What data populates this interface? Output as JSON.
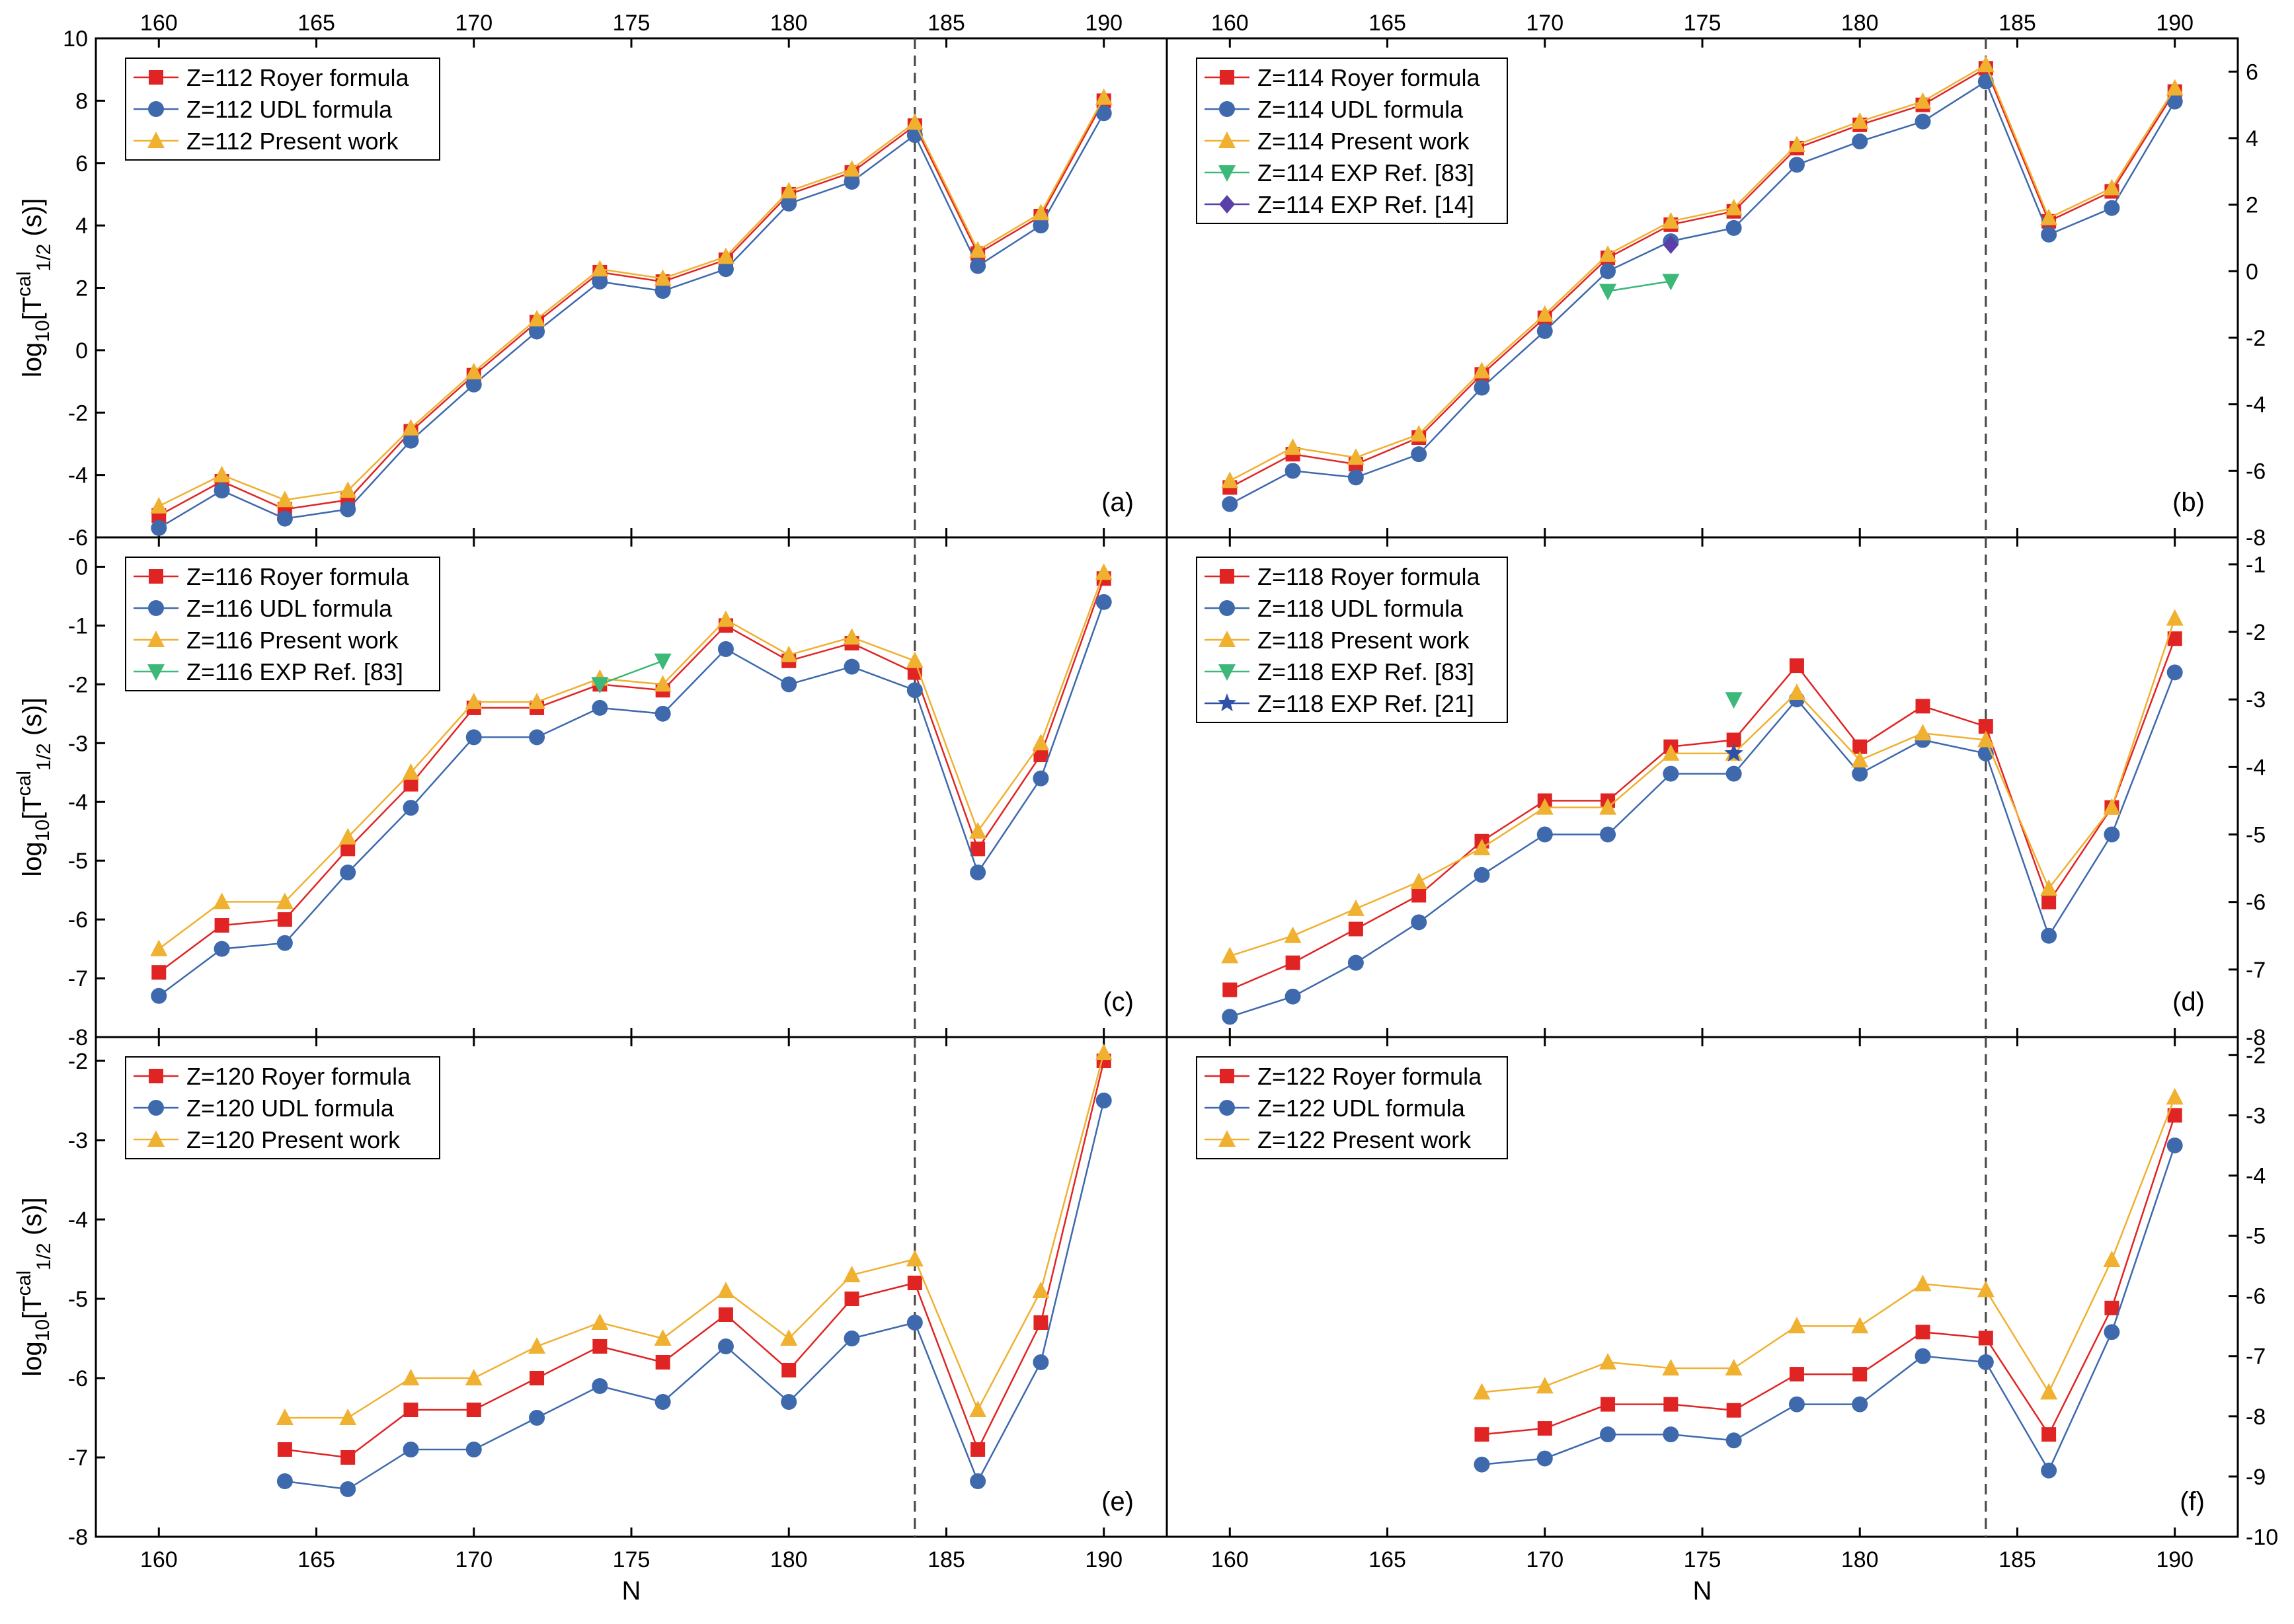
{
  "chart_data": [
    {
      "type": "line",
      "panel_label": "(a)",
      "ylim": [
        -6,
        10
      ],
      "yticks": [
        -6,
        -4,
        -2,
        0,
        2,
        4,
        6,
        8,
        10
      ],
      "y_axis_side": "left",
      "legend_position": "top-left",
      "series": [
        {
          "name": "Z=112 Royer formula",
          "color": "#e02424",
          "marker": "square",
          "x": [
            160,
            162,
            164,
            166,
            168,
            170,
            172,
            174,
            176,
            178,
            180,
            182,
            184,
            186,
            188,
            190
          ],
          "y": [
            -5.3,
            -4.2,
            -5.1,
            -4.8,
            -2.6,
            -0.8,
            0.9,
            2.5,
            2.2,
            2.9,
            5.0,
            5.7,
            7.2,
            3.1,
            4.3,
            8.0
          ]
        },
        {
          "name": "Z=112 UDL formula",
          "color": "#3e69ad",
          "marker": "circle",
          "x": [
            160,
            162,
            164,
            166,
            168,
            170,
            172,
            174,
            176,
            178,
            180,
            182,
            184,
            186,
            188,
            190
          ],
          "y": [
            -5.7,
            -4.5,
            -5.4,
            -5.1,
            -2.9,
            -1.1,
            0.6,
            2.2,
            1.9,
            2.6,
            4.7,
            5.4,
            6.9,
            2.7,
            4.0,
            7.6
          ]
        },
        {
          "name": "Z=112 Present work",
          "color": "#f0b030",
          "marker": "triangle-up",
          "x": [
            160,
            162,
            164,
            166,
            168,
            170,
            172,
            174,
            176,
            178,
            180,
            182,
            184,
            186,
            188,
            190
          ],
          "y": [
            -5.0,
            -4.0,
            -4.8,
            -4.5,
            -2.5,
            -0.7,
            1.0,
            2.6,
            2.3,
            3.0,
            5.1,
            5.8,
            7.3,
            3.2,
            4.4,
            8.1
          ]
        }
      ]
    },
    {
      "type": "line",
      "panel_label": "(b)",
      "ylim": [
        -8,
        7
      ],
      "yticks": [
        -8,
        -6,
        -4,
        -2,
        0,
        2,
        4,
        6
      ],
      "y_axis_side": "right",
      "legend_position": "top-left",
      "series": [
        {
          "name": "Z=114 Royer formula",
          "color": "#e02424",
          "marker": "square",
          "x": [
            160,
            162,
            164,
            166,
            168,
            170,
            172,
            174,
            176,
            178,
            180,
            182,
            184,
            186,
            188,
            190
          ],
          "y": [
            -6.5,
            -5.5,
            -5.8,
            -5.0,
            -3.1,
            -1.4,
            0.4,
            1.4,
            1.8,
            3.7,
            4.4,
            5.0,
            6.1,
            1.5,
            2.4,
            5.4
          ]
        },
        {
          "name": "Z=114 UDL formula",
          "color": "#3e69ad",
          "marker": "circle",
          "x": [
            160,
            162,
            164,
            166,
            168,
            170,
            172,
            174,
            176,
            178,
            180,
            182,
            184,
            186,
            188,
            190
          ],
          "y": [
            -7.0,
            -6.0,
            -6.2,
            -5.5,
            -3.5,
            -1.8,
            0.0,
            0.9,
            1.3,
            3.2,
            3.9,
            4.5,
            5.7,
            1.1,
            1.9,
            5.1
          ]
        },
        {
          "name": "Z=114 Present work",
          "color": "#f0b030",
          "marker": "triangle-up",
          "x": [
            160,
            162,
            164,
            166,
            168,
            170,
            172,
            174,
            176,
            178,
            180,
            182,
            184,
            186,
            188,
            190
          ],
          "y": [
            -6.3,
            -5.3,
            -5.6,
            -4.9,
            -3.0,
            -1.3,
            0.5,
            1.5,
            1.9,
            3.8,
            4.5,
            5.1,
            6.2,
            1.6,
            2.5,
            5.5
          ]
        },
        {
          "name": "Z=114 EXP Ref. [83]",
          "color": "#3cb878",
          "marker": "triangle-down",
          "x": [
            172,
            174
          ],
          "y": [
            -0.6,
            -0.3
          ]
        },
        {
          "name": "Z=114 EXP Ref. [14]",
          "color": "#5a3fa8",
          "marker": "diamond",
          "x": [
            174
          ],
          "y": [
            0.8
          ]
        }
      ]
    },
    {
      "type": "line",
      "panel_label": "(c)",
      "ylim": [
        -8,
        0.5
      ],
      "yticks": [
        -8,
        -7,
        -6,
        -5,
        -4,
        -3,
        -2,
        -1,
        0
      ],
      "y_axis_side": "left",
      "legend_position": "top-left",
      "series": [
        {
          "name": "Z=116 Royer formula",
          "color": "#e02424",
          "marker": "square",
          "x": [
            160,
            162,
            164,
            166,
            168,
            170,
            172,
            174,
            176,
            178,
            180,
            182,
            184,
            186,
            188,
            190
          ],
          "y": [
            -6.9,
            -6.1,
            -6.0,
            -4.8,
            -3.7,
            -2.4,
            -2.4,
            -2.0,
            -2.1,
            -1.0,
            -1.6,
            -1.3,
            -1.8,
            -4.8,
            -3.2,
            -0.2
          ]
        },
        {
          "name": "Z=116 UDL formula",
          "color": "#3e69ad",
          "marker": "circle",
          "x": [
            160,
            162,
            164,
            166,
            168,
            170,
            172,
            174,
            176,
            178,
            180,
            182,
            184,
            186,
            188,
            190
          ],
          "y": [
            -7.3,
            -6.5,
            -6.4,
            -5.2,
            -4.1,
            -2.9,
            -2.9,
            -2.4,
            -2.5,
            -1.4,
            -2.0,
            -1.7,
            -2.1,
            -5.2,
            -3.6,
            -0.6
          ]
        },
        {
          "name": "Z=116 Present work",
          "color": "#f0b030",
          "marker": "triangle-up",
          "x": [
            160,
            162,
            164,
            166,
            168,
            170,
            172,
            174,
            176,
            178,
            180,
            182,
            184,
            186,
            188,
            190
          ],
          "y": [
            -6.5,
            -5.7,
            -5.7,
            -4.6,
            -3.5,
            -2.3,
            -2.3,
            -1.9,
            -2.0,
            -0.9,
            -1.5,
            -1.2,
            -1.6,
            -4.5,
            -3.0,
            -0.1
          ]
        },
        {
          "name": "Z=116 EXP Ref. [83]",
          "color": "#3cb878",
          "marker": "triangle-down",
          "x": [
            174,
            176
          ],
          "y": [
            -2.0,
            -1.6
          ]
        }
      ]
    },
    {
      "type": "line",
      "panel_label": "(d)",
      "ylim": [
        -8,
        -0.6
      ],
      "yticks": [
        -8,
        -7,
        -6,
        -5,
        -4,
        -3,
        -2,
        -1
      ],
      "y_axis_side": "right",
      "legend_position": "top-left",
      "series": [
        {
          "name": "Z=118 Royer formula",
          "color": "#e02424",
          "marker": "square",
          "x": [
            160,
            162,
            164,
            166,
            168,
            170,
            172,
            174,
            176,
            178,
            180,
            182,
            184,
            186,
            188,
            190
          ],
          "y": [
            -7.3,
            -6.9,
            -6.4,
            -5.9,
            -5.1,
            -4.5,
            -4.5,
            -3.7,
            -3.6,
            -2.5,
            -3.7,
            -3.1,
            -3.4,
            -6.0,
            -4.6,
            -2.1
          ]
        },
        {
          "name": "Z=118 UDL formula",
          "color": "#3e69ad",
          "marker": "circle",
          "x": [
            160,
            162,
            164,
            166,
            168,
            170,
            172,
            174,
            176,
            178,
            180,
            182,
            184,
            186,
            188,
            190
          ],
          "y": [
            -7.7,
            -7.4,
            -6.9,
            -6.3,
            -5.6,
            -5.0,
            -5.0,
            -4.1,
            -4.1,
            -3.0,
            -4.1,
            -3.6,
            -3.8,
            -6.5,
            -5.0,
            -2.6
          ]
        },
        {
          "name": "Z=118 Present work",
          "color": "#f0b030",
          "marker": "triangle-up",
          "x": [
            160,
            162,
            164,
            166,
            168,
            170,
            172,
            174,
            176,
            178,
            180,
            182,
            184,
            186,
            188,
            190
          ],
          "y": [
            -6.8,
            -6.5,
            -6.1,
            -5.7,
            -5.2,
            -4.6,
            -4.6,
            -3.8,
            -3.8,
            -2.9,
            -3.9,
            -3.5,
            -3.6,
            -5.8,
            -4.6,
            -1.8
          ]
        },
        {
          "name": "Z=118 EXP Ref. [83]",
          "color": "#3cb878",
          "marker": "triangle-down",
          "x": [
            176
          ],
          "y": [
            -3.0
          ]
        },
        {
          "name": "Z=118 EXP Ref. [21]",
          "color": "#2f4fa8",
          "marker": "star",
          "x": [
            176
          ],
          "y": [
            -3.8
          ]
        }
      ]
    },
    {
      "type": "line",
      "panel_label": "(e)",
      "ylim": [
        -8,
        -1.7
      ],
      "yticks": [
        -8,
        -7,
        -6,
        -5,
        -4,
        -3,
        -2
      ],
      "y_axis_side": "left",
      "legend_position": "top-left",
      "series": [
        {
          "name": "Z=120 Royer formula",
          "color": "#e02424",
          "marker": "square",
          "x": [
            164,
            166,
            168,
            170,
            172,
            174,
            176,
            178,
            180,
            182,
            184,
            186,
            188,
            190
          ],
          "y": [
            -6.9,
            -7.0,
            -6.4,
            -6.4,
            -6.0,
            -5.6,
            -5.8,
            -5.2,
            -5.9,
            -5.0,
            -4.8,
            -6.9,
            -5.3,
            -2.0
          ]
        },
        {
          "name": "Z=120 UDL formula",
          "color": "#3e69ad",
          "marker": "circle",
          "x": [
            164,
            166,
            168,
            170,
            172,
            174,
            176,
            178,
            180,
            182,
            184,
            186,
            188,
            190
          ],
          "y": [
            -7.3,
            -7.4,
            -6.9,
            -6.9,
            -6.5,
            -6.1,
            -6.3,
            -5.6,
            -6.3,
            -5.5,
            -5.3,
            -7.3,
            -5.8,
            -2.5
          ]
        },
        {
          "name": "Z=120 Present work",
          "color": "#f0b030",
          "marker": "triangle-up",
          "x": [
            164,
            166,
            168,
            170,
            172,
            174,
            176,
            178,
            180,
            182,
            184,
            186,
            188,
            190
          ],
          "y": [
            -6.5,
            -6.5,
            -6.0,
            -6.0,
            -5.6,
            -5.3,
            -5.5,
            -4.9,
            -5.5,
            -4.7,
            -4.5,
            -6.4,
            -4.9,
            -1.9
          ]
        }
      ]
    },
    {
      "type": "line",
      "panel_label": "(f)",
      "ylim": [
        -10,
        -1.7
      ],
      "yticks": [
        -10,
        -9,
        -8,
        -7,
        -6,
        -5,
        -4,
        -3,
        -2
      ],
      "y_axis_side": "right",
      "legend_position": "top-left",
      "series": [
        {
          "name": "Z=122 Royer formula",
          "color": "#e02424",
          "marker": "square",
          "x": [
            168,
            170,
            172,
            174,
            176,
            178,
            180,
            182,
            184,
            186,
            188,
            190
          ],
          "y": [
            -8.3,
            -8.2,
            -7.8,
            -7.8,
            -7.9,
            -7.3,
            -7.3,
            -6.6,
            -6.7,
            -8.3,
            -6.2,
            -3.0
          ]
        },
        {
          "name": "Z=122 UDL formula",
          "color": "#3e69ad",
          "marker": "circle",
          "x": [
            168,
            170,
            172,
            174,
            176,
            178,
            180,
            182,
            184,
            186,
            188,
            190
          ],
          "y": [
            -8.8,
            -8.7,
            -8.3,
            -8.3,
            -8.4,
            -7.8,
            -7.8,
            -7.0,
            -7.1,
            -8.9,
            -6.6,
            -3.5
          ]
        },
        {
          "name": "Z=122 Present work",
          "color": "#f0b030",
          "marker": "triangle-up",
          "x": [
            168,
            170,
            172,
            174,
            176,
            178,
            180,
            182,
            184,
            186,
            188,
            190
          ],
          "y": [
            -7.6,
            -7.5,
            -7.1,
            -7.2,
            -7.2,
            -6.5,
            -6.5,
            -5.8,
            -5.9,
            -7.6,
            -5.4,
            -2.7
          ]
        }
      ]
    }
  ],
  "shared": {
    "xlim": [
      158,
      192
    ],
    "xticks": [
      160,
      165,
      170,
      175,
      180,
      185,
      190
    ],
    "xlabel": "N",
    "ylabel_main": "log",
    "ylabel_sub": "10",
    "ylabel_bracket_open": "[T",
    "ylabel_sup": "cal",
    "ylabel_sub2": "1/2",
    "ylabel_tail": "(s)]",
    "vline_x": 184
  }
}
